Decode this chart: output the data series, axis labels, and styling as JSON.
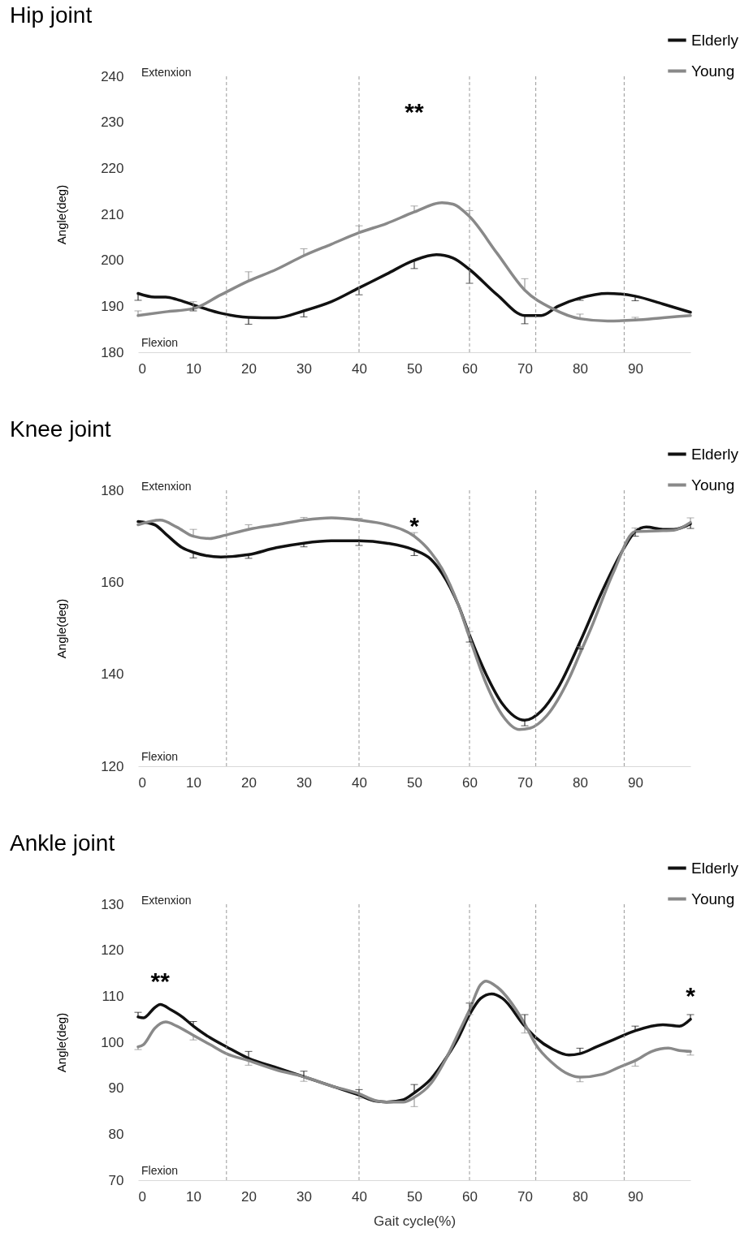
{
  "chart_data": [
    {
      "type": "line",
      "title": "Hip joint",
      "ylabel": "Angle(deg)",
      "xlim": [
        0,
        100
      ],
      "xticks": [
        0,
        10,
        20,
        30,
        40,
        50,
        60,
        70,
        80,
        90
      ],
      "ylim": [
        180,
        240
      ],
      "yticks": [
        180,
        190,
        200,
        210,
        220,
        230,
        240
      ],
      "grid": false,
      "legend": "top right",
      "line_style": "solid",
      "series": [
        {
          "name": "Elderly",
          "color": "#111111",
          "x": [
            0,
            3,
            5,
            7,
            10,
            15,
            20,
            25,
            30,
            35,
            40,
            45,
            50,
            54,
            57,
            60,
            65,
            70,
            73,
            76,
            80,
            85,
            90,
            95,
            100
          ],
          "values": [
            192.8,
            192,
            192,
            191.5,
            190.3,
            188.5,
            187.6,
            187.5,
            189,
            191,
            194,
            197,
            200,
            201.2,
            200.5,
            198,
            192.5,
            188,
            188,
            190,
            191.8,
            192.8,
            192.2,
            190.5,
            188.7
          ],
          "errors": [
            [
              191.3,
              192.8
            ],
            null,
            null,
            null,
            [
              189,
              190.3
            ],
            null,
            [
              186.1,
              187.6
            ],
            null,
            [
              187.7,
              189
            ],
            null,
            [
              192.5,
              194
            ],
            null,
            [
              198.2,
              200
            ],
            null,
            null,
            [
              195,
              198
            ],
            null,
            [
              186.2,
              188
            ],
            null,
            null,
            [
              191.3,
              191.8
            ],
            null,
            [
              191.2,
              192.2
            ],
            null,
            null
          ]
        },
        {
          "name": "Young",
          "color": "#898989",
          "x": [
            0,
            5,
            10,
            15,
            20,
            25,
            30,
            35,
            40,
            45,
            50,
            55,
            57,
            60,
            65,
            70,
            75,
            80,
            85,
            90,
            95,
            100
          ],
          "values": [
            188,
            188.8,
            189.5,
            192.5,
            195.5,
            198,
            201,
            203.5,
            206,
            208,
            210.5,
            212.5,
            212.2,
            209.5,
            201.5,
            193.5,
            189.5,
            187.3,
            186.8,
            187,
            187.5,
            188
          ],
          "errors": [
            [
              188,
              189
            ],
            null,
            [
              189.5,
              191
            ],
            null,
            [
              195.5,
              197.5
            ],
            null,
            [
              201,
              202.5
            ],
            null,
            [
              206,
              207.5
            ],
            null,
            [
              210.5,
              211.8
            ],
            null,
            null,
            [
              209.5,
              210.8
            ],
            null,
            [
              193.5,
              196
            ],
            null,
            [
              187.3,
              188.3
            ],
            null,
            [
              187,
              187.6
            ],
            null,
            null
          ]
        }
      ],
      "ref_lines": [
        {
          "axis": "x",
          "value": 16,
          "color": "#999999",
          "line_style": "dashed"
        },
        {
          "axis": "x",
          "value": 40,
          "color": "#999999",
          "line_style": "dashed"
        },
        {
          "axis": "x",
          "value": 60,
          "color": "#999999",
          "line_style": "dashed"
        },
        {
          "axis": "x",
          "value": 72,
          "color": "#999999",
          "line_style": "dashed"
        },
        {
          "axis": "x",
          "value": 88,
          "color": "#999999",
          "line_style": "dashed"
        }
      ],
      "annotations": [
        "Extenxion",
        "Flexion",
        "**"
      ]
    },
    {
      "type": "line",
      "title": "Knee joint",
      "ylabel": "Angle(deg)",
      "xlim": [
        0,
        100
      ],
      "xticks": [
        0,
        10,
        20,
        30,
        40,
        50,
        60,
        70,
        80,
        90
      ],
      "ylim": [
        120,
        180
      ],
      "yticks": [
        120,
        140,
        160,
        180
      ],
      "grid": false,
      "legend": "top right",
      "line_style": "solid",
      "series": [
        {
          "name": "Elderly",
          "color": "#111111",
          "x": [
            0,
            3,
            5,
            8,
            10,
            15,
            20,
            25,
            30,
            35,
            40,
            45,
            50,
            53,
            55,
            58,
            60,
            63,
            66,
            70,
            73,
            76,
            80,
            84,
            88,
            90,
            92,
            95,
            97,
            100
          ],
          "values": [
            173.2,
            172.5,
            170.5,
            167.5,
            166.5,
            165.5,
            166,
            167.5,
            168.5,
            169,
            169,
            168.5,
            167,
            165,
            162,
            155,
            148.5,
            140,
            133.5,
            130,
            132,
            137,
            147,
            158,
            167.5,
            171,
            172,
            171.5,
            171.5,
            172.7
          ],
          "errors": [
            null,
            null,
            null,
            null,
            [
              165.3,
              166.5
            ],
            null,
            [
              165.2,
              166
            ],
            null,
            [
              167.7,
              168.5
            ],
            null,
            [
              168,
              169
            ],
            null,
            [
              165.8,
              167
            ],
            null,
            null,
            null,
            [
              147,
              148.5
            ],
            null,
            null,
            [
              128.8,
              130
            ],
            null,
            null,
            [
              145.5,
              147
            ],
            null,
            null,
            [
              170,
              171
            ],
            null,
            null,
            null,
            [
              171.7,
              172.7
            ]
          ]
        },
        {
          "name": "Young",
          "color": "#898989",
          "x": [
            0,
            4,
            7,
            10,
            13,
            15,
            20,
            25,
            30,
            35,
            40,
            45,
            50,
            53,
            55,
            58,
            60,
            63,
            66,
            69,
            71,
            74,
            78,
            80,
            82,
            86,
            90,
            95,
            97,
            100
          ],
          "values": [
            172.5,
            173.5,
            172,
            170,
            169.5,
            170,
            171.5,
            172.5,
            173.5,
            174,
            173.5,
            172.5,
            170,
            166.5,
            163,
            155,
            148,
            138,
            131,
            128,
            128.3,
            131,
            139,
            144.5,
            150,
            162,
            171,
            171.2,
            171.3,
            173
          ],
          "errors": [
            null,
            null,
            null,
            [
              170,
              171.5
            ],
            null,
            null,
            [
              171.5,
              172.5
            ],
            null,
            [
              173.5,
              174.1
            ],
            null,
            [
              173.5,
              173.9
            ],
            null,
            [
              170,
              170.8
            ],
            null,
            null,
            null,
            [
              148,
              149.3
            ],
            null,
            null,
            null,
            null,
            null,
            null,
            [
              144.5,
              146
            ],
            null,
            null,
            [
              171,
              171.8
            ],
            null,
            null,
            [
              173,
              174
            ]
          ]
        }
      ],
      "ref_lines": [
        {
          "axis": "x",
          "value": 16,
          "color": "#999999",
          "line_style": "dashed"
        },
        {
          "axis": "x",
          "value": 40,
          "color": "#999999",
          "line_style": "dashed"
        },
        {
          "axis": "x",
          "value": 60,
          "color": "#999999",
          "line_style": "dashed"
        },
        {
          "axis": "x",
          "value": 72,
          "color": "#999999",
          "line_style": "dashed"
        },
        {
          "axis": "x",
          "value": 88,
          "color": "#999999",
          "line_style": "dashed"
        }
      ],
      "annotations": [
        "Extenxion",
        "Flexion",
        "*"
      ]
    },
    {
      "type": "line",
      "title": "Ankle joint",
      "xlabel": "Gait cycle(%)",
      "ylabel": "Angle(deg)",
      "xlim": [
        0,
        100
      ],
      "xticks": [
        0,
        10,
        20,
        30,
        40,
        50,
        60,
        70,
        80,
        90
      ],
      "ylim": [
        70,
        130
      ],
      "yticks": [
        70,
        80,
        90,
        100,
        110,
        120,
        130
      ],
      "grid": false,
      "legend": "top right",
      "line_style": "solid",
      "series": [
        {
          "name": "Elderly",
          "color": "#111111",
          "x": [
            0,
            1,
            3,
            4,
            6,
            8,
            10,
            13,
            16,
            20,
            25,
            30,
            35,
            40,
            43,
            45,
            48,
            50,
            53,
            56,
            58,
            60,
            62,
            64,
            66,
            70,
            72,
            75,
            78,
            80,
            83,
            86,
            90,
            95,
            98,
            100
          ],
          "values": [
            105.5,
            105.3,
            107.5,
            108.2,
            107,
            105.5,
            103.5,
            101,
            99,
            96.5,
            94.5,
            92.5,
            90.5,
            88.5,
            87.2,
            87,
            87.5,
            89,
            92,
            97,
            101,
            106,
            109.5,
            110.5,
            109.5,
            103.5,
            101,
            98.5,
            97.2,
            97.5,
            99,
            100.5,
            102.5,
            103.8,
            103.5,
            105
          ],
          "errors": [
            [
              105.5,
              106.5
            ],
            null,
            null,
            null,
            null,
            null,
            [
              103.5,
              104.5
            ],
            null,
            null,
            [
              96.5,
              98
            ],
            null,
            [
              92.5,
              93.7
            ],
            null,
            [
              88.5,
              89.7
            ],
            null,
            null,
            null,
            [
              89,
              90.8
            ],
            null,
            null,
            null,
            [
              106,
              108.5
            ],
            null,
            null,
            null,
            [
              103.5,
              106
            ],
            null,
            null,
            null,
            [
              97.5,
              98.7
            ],
            null,
            null,
            [
              102.5,
              103.5
            ],
            null,
            null,
            [
              105,
              106
            ]
          ]
        },
        {
          "name": "Young",
          "color": "#898989",
          "x": [
            0,
            1,
            3,
            5,
            7,
            10,
            13,
            16,
            20,
            25,
            30,
            35,
            40,
            43,
            45,
            48,
            50,
            53,
            56,
            58,
            60,
            62,
            63,
            65,
            70,
            72,
            75,
            78,
            80,
            84,
            87,
            90,
            93,
            96,
            98,
            100
          ],
          "values": [
            99,
            99.5,
            103,
            104.4,
            103.5,
            101.5,
            99.5,
            97.5,
            96,
            94,
            92.5,
            90.5,
            88.8,
            87.3,
            87,
            87,
            88,
            91,
            97,
            102,
            107,
            112.5,
            113.3,
            112,
            104,
            99.5,
            95.5,
            93,
            92.4,
            93,
            94.5,
            96,
            98,
            98.7,
            98.2,
            98
          ],
          "errors": [
            [
              98.4,
              99
            ],
            null,
            null,
            null,
            null,
            [
              100.5,
              101.5
            ],
            null,
            null,
            [
              95,
              96
            ],
            null,
            [
              91.5,
              92.5
            ],
            null,
            [
              87.8,
              88.8
            ],
            null,
            null,
            null,
            [
              86,
              88
            ],
            null,
            null,
            null,
            [
              106,
              107
            ],
            null,
            null,
            null,
            [
              102,
              104
            ],
            null,
            null,
            null,
            [
              91.4,
              92.4
            ],
            null,
            null,
            [
              94.8,
              96
            ],
            null,
            null,
            null,
            [
              97.2,
              98
            ]
          ]
        }
      ],
      "ref_lines": [
        {
          "axis": "x",
          "value": 16,
          "color": "#999999",
          "line_style": "dashed"
        },
        {
          "axis": "x",
          "value": 40,
          "color": "#999999",
          "line_style": "dashed"
        },
        {
          "axis": "x",
          "value": 60,
          "color": "#999999",
          "line_style": "dashed"
        },
        {
          "axis": "x",
          "value": 72,
          "color": "#999999",
          "line_style": "dashed"
        },
        {
          "axis": "x",
          "value": 88,
          "color": "#999999",
          "line_style": "dashed"
        }
      ],
      "annotations": [
        "Extenxion",
        "Flexion",
        {
          "text": "**",
          "x": 4,
          "y": 108.2
        },
        {
          "text": "*",
          "x": 100,
          "y": 105
        }
      ]
    }
  ]
}
